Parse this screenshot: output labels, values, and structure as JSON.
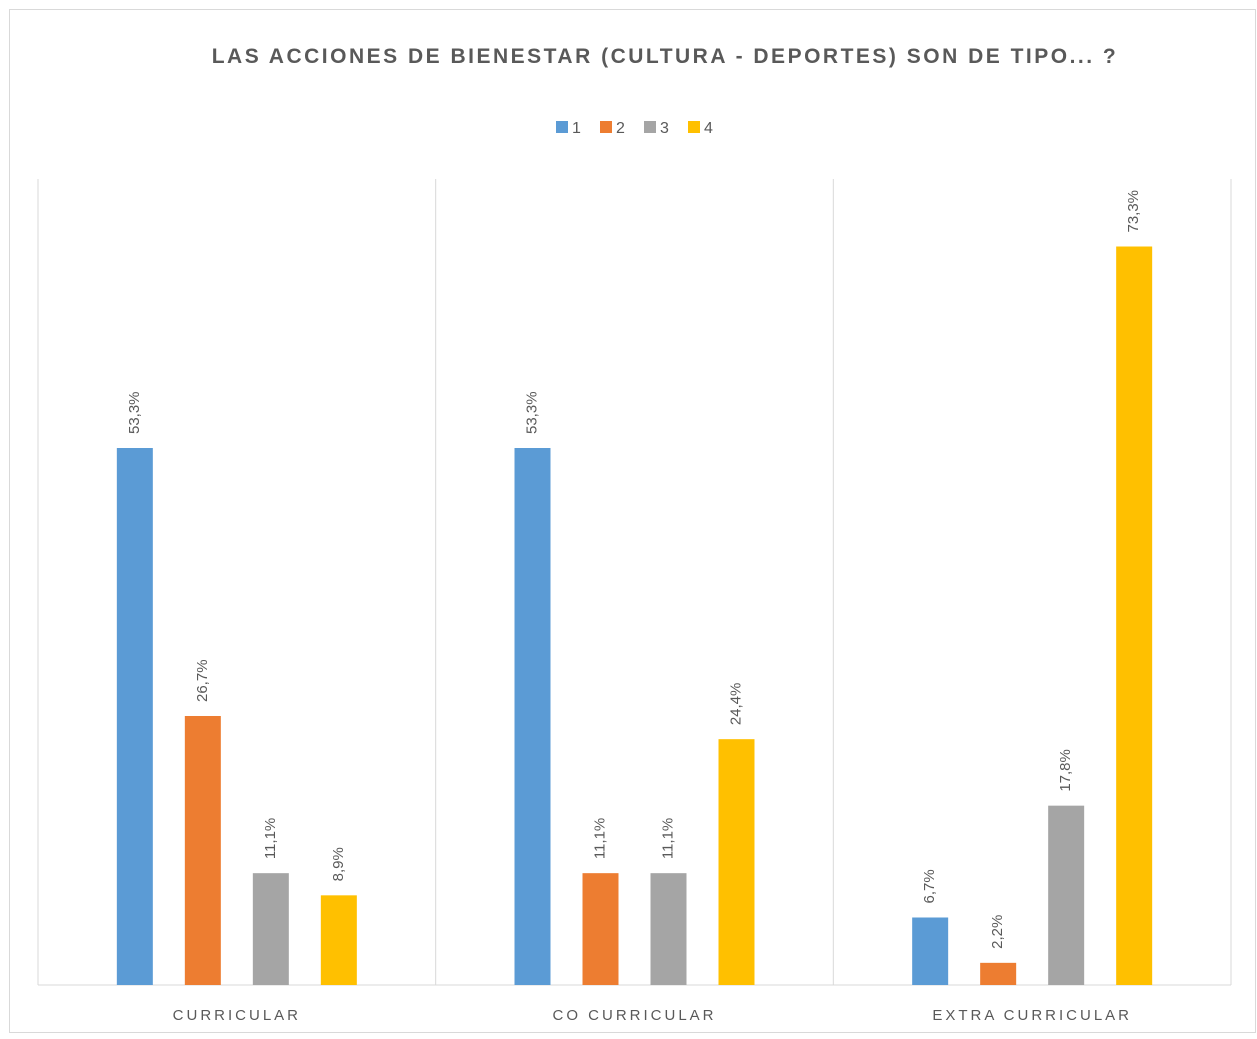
{
  "chart_data": {
    "type": "bar",
    "title": "LAS ACCIONES DE BIENESTAR (CULTURA - DEPORTES) SON DE TIPO... ?",
    "categories": [
      "CURRICULAR",
      "CO CURRICULAR",
      "EXTRA CURRICULAR"
    ],
    "series": [
      {
        "name": "1",
        "color": "#5b9bd5",
        "values": [
          53.3,
          53.3,
          6.7
        ],
        "value_labels": [
          "53,3%",
          "53,3%",
          "6,7%"
        ]
      },
      {
        "name": "2",
        "color": "#ed7d31",
        "values": [
          26.7,
          11.1,
          2.2
        ],
        "value_labels": [
          "26,7%",
          "11,1%",
          "2,2%"
        ]
      },
      {
        "name": "3",
        "color": "#a5a5a5",
        "values": [
          11.1,
          11.1,
          17.8
        ],
        "value_labels": [
          "11,1%",
          "11,1%",
          "17,8%"
        ]
      },
      {
        "name": "4",
        "color": "#ffc000",
        "values": [
          8.9,
          24.4,
          73.3
        ],
        "value_labels": [
          "8,9%",
          "24,4%",
          "73,3%"
        ]
      }
    ],
    "ylim": [
      0,
      80
    ],
    "legend": "top"
  }
}
